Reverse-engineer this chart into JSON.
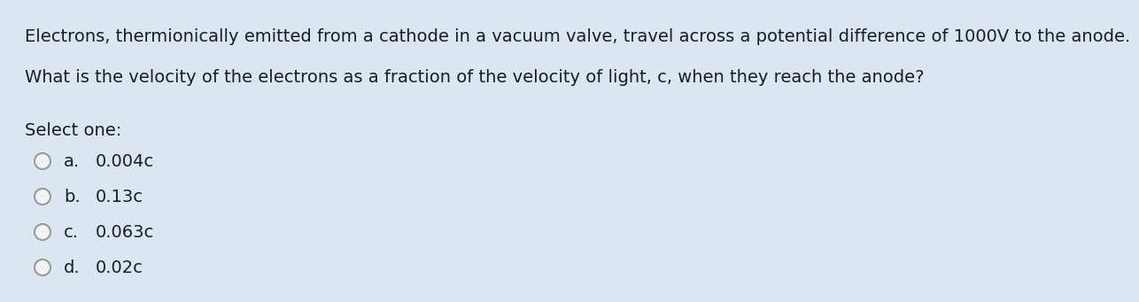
{
  "background_color": "#dce6f0",
  "text_color": "#1a1a2e",
  "line1": "Electrons, thermionically emitted from a cathode in a vacuum valve, travel across a potential difference of 1000V to the anode.",
  "line2": "What is the velocity of the electrons as a fraction of the velocity of light, c, when they reach the anode?",
  "select_label": "Select one:",
  "options": [
    {
      "letter": "a.",
      "text": "0.004c"
    },
    {
      "letter": "b.",
      "text": "0.13c"
    },
    {
      "letter": "c.",
      "text": "0.063c"
    },
    {
      "letter": "d.",
      "text": "0.02c"
    }
  ],
  "font_size_body": 14,
  "font_size_select": 14,
  "font_size_options": 14,
  "circle_color": "#f0f4f8",
  "circle_edge_color": "#999999",
  "circle_linewidth": 1.5
}
